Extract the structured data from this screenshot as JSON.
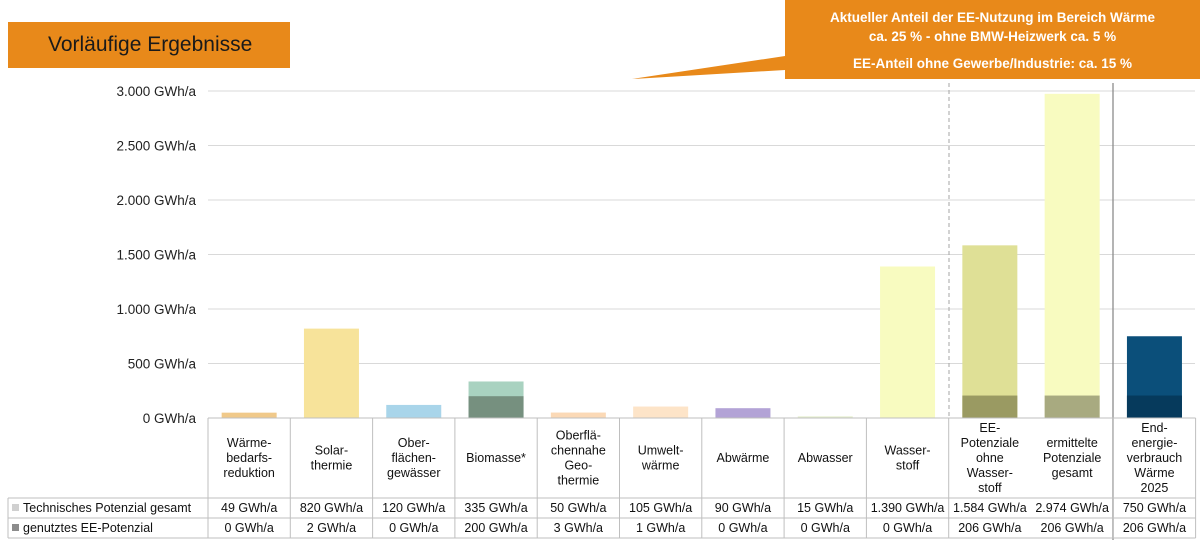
{
  "header": {
    "title": "Vorläufige Ergebnisse",
    "note_line1": "Aktueller Anteil der EE-Nutzung im Bereich Wärme",
    "note_line2": "ca. 25 %  - ohne BMW-Heizwerk ca. 5 %",
    "note_line3": "EE-Anteil ohne Gewerbe/Industrie: ca. 15 %"
  },
  "colors": {
    "accent": "#e8891a",
    "grid": "#d9d9d9",
    "divider_dashed": "#a6a6a6",
    "divider_solid": "#8c8c8c"
  },
  "chart_data": {
    "type": "bar",
    "ylim": [
      0,
      3000
    ],
    "yticks": [
      {
        "value": 0,
        "label": "0 GWh/a"
      },
      {
        "value": 500,
        "label": "500 GWh/a"
      },
      {
        "value": 1000,
        "label": "1.000 GWh/a"
      },
      {
        "value": 1500,
        "label": "1.500 GWh/a"
      },
      {
        "value": 2000,
        "label": "2.000 GWh/a"
      },
      {
        "value": 2500,
        "label": "2.500 GWh/a"
      },
      {
        "value": 3000,
        "label": "3.000 GWh/a"
      }
    ],
    "categories": [
      "Wärme-\nbedarfs-\nreduktion",
      "Solar-\nthermie",
      "Ober-\nflächen-\ngewässer",
      "Biomasse*",
      "Oberflä-\nchennahe\nGeo-\nthermie",
      "Umwelt-\nwärme",
      "Abwärme",
      "Abwasser",
      "Wasser-\nstoff",
      "EE-\nPotenziale\nohne\nWasser-\nstoff",
      "ermittelte\nPotenziale\ngesamt",
      "End-\nenergie-\nverbrauch\nWärme\n2025"
    ],
    "series": [
      {
        "name": "Technisches Potenzial gesamt",
        "values": [
          49,
          820,
          120,
          335,
          50,
          105,
          90,
          15,
          1390,
          1584,
          2974,
          750
        ],
        "labels": [
          "49 GWh/a",
          "820 GWh/a",
          "120 GWh/a",
          "335 GWh/a",
          "50 GWh/a",
          "105 GWh/a",
          "90 GWh/a",
          "15 GWh/a",
          "1.390 GWh/a",
          "1.584 GWh/a",
          "2.974 GWh/a",
          "750 GWh/a"
        ],
        "colors": [
          "#f0c98a",
          "#f7e39a",
          "#a9d5ea",
          "#a9d2c0",
          "#fbd9b6",
          "#fde4c8",
          "#b3a3d6",
          "#e6efcf",
          "#f8fbc0",
          "#dfe096",
          "#f8fbc0",
          "#0b4f7a"
        ]
      },
      {
        "name": "genutztes EE-Potenzial",
        "values": [
          0,
          2,
          0,
          200,
          3,
          1,
          0,
          0,
          0,
          206,
          206,
          206
        ],
        "labels": [
          "0 GWh/a",
          "2 GWh/a",
          "0 GWh/a",
          "200 GWh/a",
          "3 GWh/a",
          "1 GWh/a",
          "0 GWh/a",
          "0 GWh/a",
          "0 GWh/a",
          "206 GWh/a",
          "206 GWh/a",
          "206 GWh/a"
        ],
        "colors": [
          "#c8a76e",
          "#d8c47e",
          "#8fb6c9",
          "#76907f",
          "#d8b898",
          "#d9c2a6",
          "#8e7fb2",
          "#bfc8ab",
          "#cfd29f",
          "#9a9a62",
          "#a8aa80",
          "#063a5c"
        ]
      }
    ]
  }
}
